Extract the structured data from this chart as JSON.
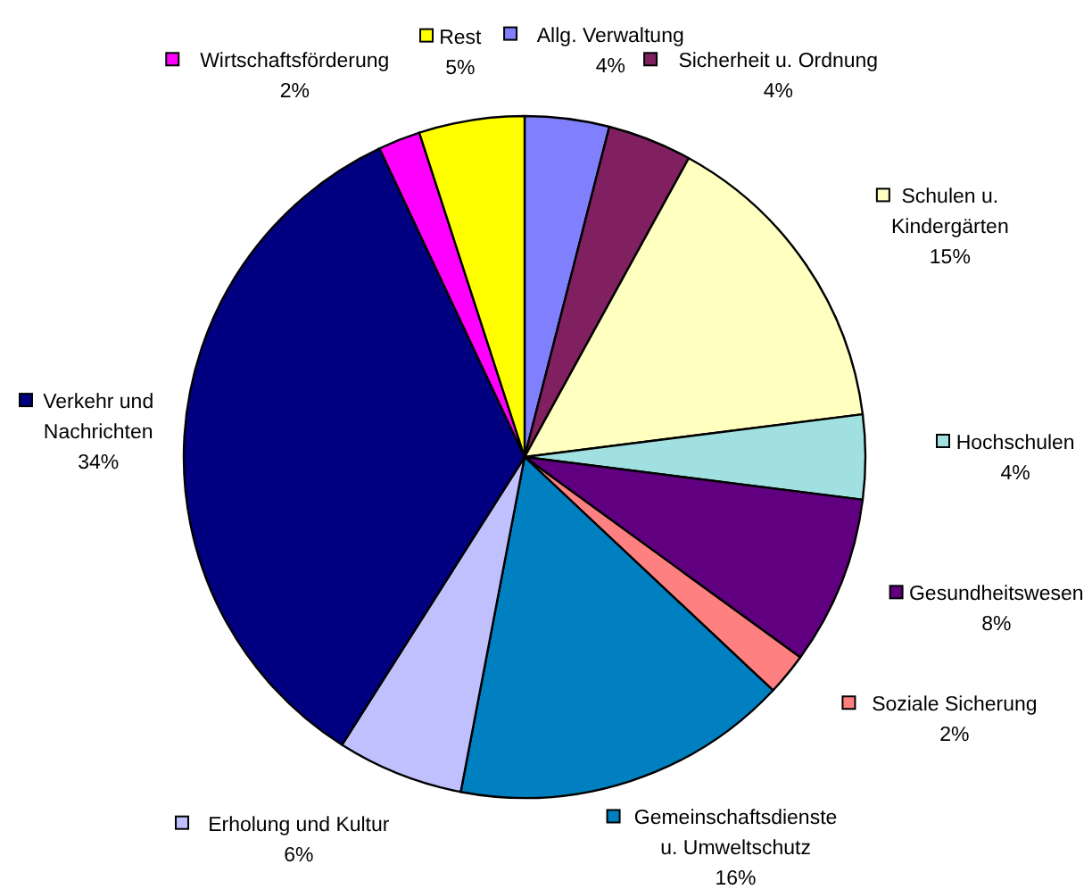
{
  "chart_data": {
    "type": "pie",
    "categories": [
      "Allg. Verwaltung",
      "Sicherheit u. Ordnung",
      "Schulen u. Kindergärten",
      "Hochschulen",
      "Gesundheitswesen",
      "Soziale Sicherung",
      "Gemeinschaftsdienste u. Umweltschutz",
      "Erholung und Kultur",
      "Verkehr und Nachrichten",
      "Wirtschaftsförderung",
      "Rest"
    ],
    "values": [
      4,
      4,
      15,
      4,
      8,
      2,
      16,
      6,
      34,
      2,
      5
    ],
    "value_labels": [
      "4%",
      "4%",
      "15%",
      "4%",
      "8%",
      "2%",
      "16%",
      "6%",
      "34%",
      "2%",
      "5%"
    ],
    "colors": [
      "#8080ff",
      "#802060",
      "#ffffc0",
      "#a0e0e0",
      "#600080",
      "#ff8080",
      "#0080c0",
      "#c0c0ff",
      "#000080",
      "#ff00ff",
      "#ffff00"
    ],
    "legend": true
  }
}
